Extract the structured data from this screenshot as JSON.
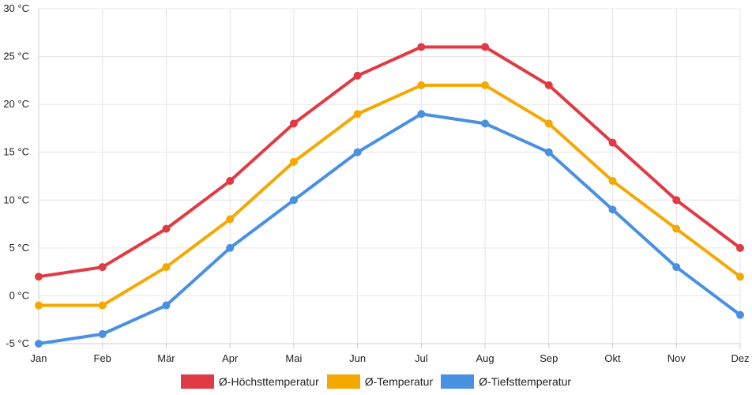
{
  "chart_data": {
    "type": "line",
    "title": "",
    "xlabel": "",
    "ylabel": "",
    "categories": [
      "Jan",
      "Feb",
      "Mär",
      "Apr",
      "Mai",
      "Jun",
      "Jul",
      "Aug",
      "Sep",
      "Okt",
      "Nov",
      "Dez"
    ],
    "ylim": [
      -5,
      30
    ],
    "yticks": [
      -5,
      0,
      5,
      10,
      15,
      20,
      25,
      30
    ],
    "yunit": " °C",
    "grid": true,
    "legend_position": "bottom",
    "series": [
      {
        "name": "Ø-Höchsttemperatur",
        "color": "#e03a45",
        "values": [
          2,
          3,
          7,
          12,
          18,
          23,
          26,
          26,
          22,
          16,
          10,
          5
        ]
      },
      {
        "name": "Ø-Temperatur",
        "color": "#f5a800",
        "values": [
          -1,
          -1,
          3,
          8,
          14,
          19,
          22,
          22,
          18,
          12,
          7,
          2
        ]
      },
      {
        "name": "Ø-Tiefsttemperatur",
        "color": "#4a90e2",
        "values": [
          -5,
          -4,
          -1,
          5,
          10,
          15,
          19,
          18,
          15,
          9,
          3,
          -2
        ]
      }
    ]
  }
}
